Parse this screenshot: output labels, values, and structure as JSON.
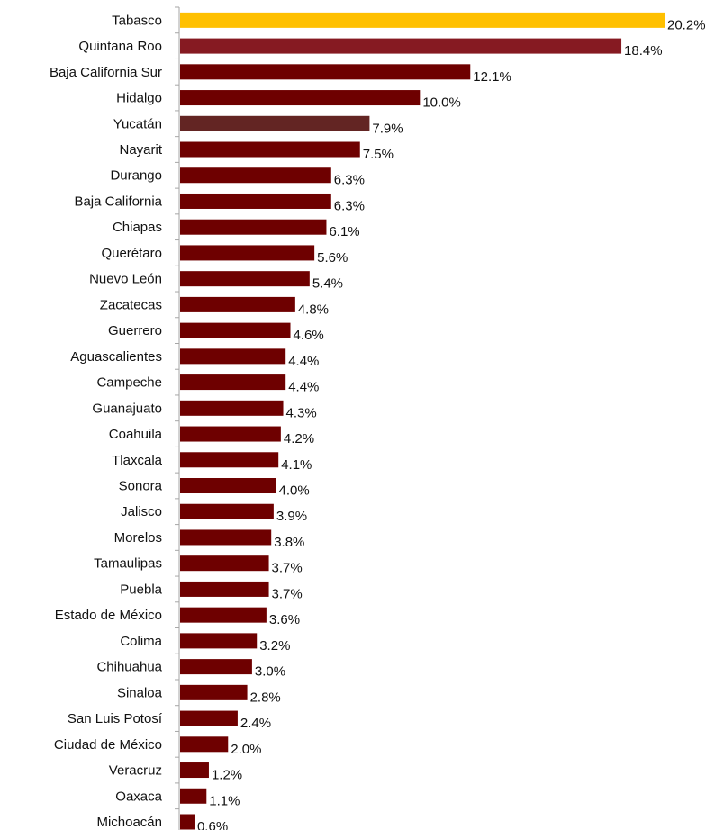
{
  "chart_data": {
    "type": "bar",
    "orientation": "horizontal",
    "title": "",
    "xlabel": "",
    "ylabel": "",
    "grid": false,
    "legend": "none",
    "value_suffix": "%",
    "xlim": [
      0,
      20.2
    ],
    "categories": [
      "Tabasco",
      "Quintana Roo",
      "Baja California Sur",
      "Hidalgo",
      "Yucatán",
      "Nayarit",
      "Durango",
      "Baja California",
      "Chiapas",
      "Querétaro",
      "Nuevo León",
      "Zacatecas",
      "Guerrero ",
      "Aguascalientes",
      "Campeche",
      "Guanajuato",
      "Coahuila",
      "Tlaxcala",
      "Sonora",
      "Jalisco",
      "Morelos",
      "Tamaulipas",
      "Puebla",
      "Estado de México",
      "Colima",
      "Chihuahua",
      "Sinaloa",
      "San Luis Potosí",
      "Ciudad de México",
      "Veracruz",
      "Oaxaca",
      "Michoacán"
    ],
    "values": [
      20.2,
      18.4,
      12.1,
      10.0,
      7.9,
      7.5,
      6.3,
      6.3,
      6.1,
      5.6,
      5.4,
      4.8,
      4.6,
      4.4,
      4.4,
      4.3,
      4.2,
      4.1,
      4.0,
      3.9,
      3.8,
      3.7,
      3.7,
      3.6,
      3.2,
      3.0,
      2.8,
      2.4,
      2.0,
      1.2,
      1.1,
      0.6
    ],
    "value_labels": [
      "20.2%",
      "18.4%",
      "12.1%",
      "10.0%",
      "7.9%",
      "7.5%",
      "6.3%",
      "6.3%",
      "6.1%",
      "5.6%",
      "5.4%",
      "4.8%",
      "4.6%",
      "4.4%",
      "4.4%",
      "4.3%",
      "4.2%",
      "4.1%",
      "4.0%",
      "3.9%",
      "3.8%",
      "3.7%",
      "3.7%",
      "3.6%",
      "3.2%",
      "3.0%",
      "2.8%",
      "2.4%",
      "2.0%",
      "1.2%",
      "1.1%",
      "0.6%"
    ],
    "colors": {
      "default": "#6E0000",
      "highlights": {
        "Tabasco": "#FFC000",
        "Quintana Roo": "#861A22",
        "Yucatán": "#632523"
      },
      "axis": "#A6A6A6"
    }
  }
}
